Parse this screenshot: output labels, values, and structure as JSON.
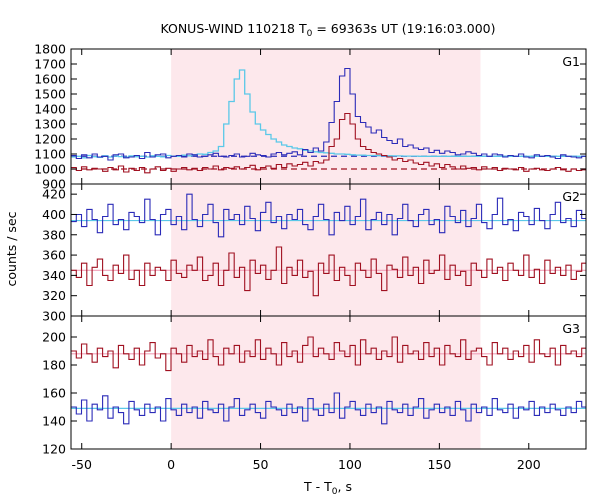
{
  "chart_data": {
    "type": "line",
    "title": {
      "prefix": "KONUS-WIND 110218 T",
      "sub": "0",
      "suffix": " = 69363s UT (19:16:03.000)"
    },
    "xlabel": {
      "prefix": "T - T",
      "sub": "0",
      "suffix": ", s"
    },
    "ylabel": "counts / sec",
    "xlim": [
      -56,
      232
    ],
    "xticks": [
      -50,
      0,
      50,
      100,
      150,
      200
    ],
    "shaded_interval": [
      0,
      173
    ],
    "colors": {
      "shade": "#fde8ec",
      "blue": "#2b2bb8",
      "red": "#a01020",
      "light_blue": "#5bc8e8",
      "pink": "#f0a0b8",
      "frame": "#000000"
    },
    "panels": [
      {
        "label": "G1",
        "ylim": [
          900,
          1800
        ],
        "yticks": [
          900,
          1000,
          1100,
          1200,
          1300,
          1400,
          1500,
          1600,
          1700,
          1800
        ],
        "backgrounds": [
          {
            "color": "blue",
            "style": "dashed",
            "value": 1085
          },
          {
            "color": "red",
            "style": "dashed",
            "value": 1000
          }
        ],
        "series": [
          {
            "color": "light_blue",
            "step": 2.944,
            "values": [
              1080,
              1085,
              1075,
              1090,
              1082,
              1078,
              1088,
              1080,
              1086,
              1083,
              1079,
              1087,
              1082,
              1085,
              1080,
              1088,
              1084,
              1081,
              1090,
              1086,
              1085,
              1092,
              1088,
              1095,
              1100,
              1098,
              1110,
              1120,
              1150,
              1300,
              1450,
              1600,
              1660,
              1500,
              1380,
              1300,
              1260,
              1230,
              1200,
              1180,
              1160,
              1150,
              1140,
              1135,
              1125,
              1120,
              1115,
              1110,
              1108,
              1105,
              1100,
              1100,
              1098,
              1095,
              1093,
              1092,
              1090,
              1090,
              1089,
              1088,
              1088,
              1087,
              1087,
              1086,
              1086,
              1086,
              1085,
              1085,
              1085,
              1085,
              1085,
              1085,
              1085,
              1085,
              1085,
              1085,
              1085,
              1085,
              1085,
              1085,
              1085,
              1085,
              1085,
              1085,
              1085,
              1085,
              1085,
              1085,
              1085,
              1085,
              1085,
              1085,
              1085,
              1085,
              1085,
              1085,
              1085,
              1085
            ]
          },
          {
            "color": "blue",
            "step": 2.944,
            "values": [
              1090,
              1070,
              1095,
              1075,
              1100,
              1080,
              1085,
              1060,
              1095,
              1100,
              1075,
              1080,
              1090,
              1070,
              1110,
              1080,
              1095,
              1100,
              1075,
              1085,
              1090,
              1080,
              1100,
              1095,
              1080,
              1085,
              1095,
              1105,
              1085,
              1080,
              1090,
              1100,
              1080,
              1085,
              1105,
              1095,
              1090,
              1080,
              1100,
              1110,
              1095,
              1105,
              1115,
              1095,
              1130,
              1110,
              1140,
              1120,
              1180,
              1310,
              1450,
              1620,
              1670,
              1500,
              1350,
              1310,
              1280,
              1240,
              1260,
              1210,
              1190,
              1170,
              1200,
              1150,
              1160,
              1140,
              1130,
              1140,
              1110,
              1125,
              1105,
              1120,
              1110,
              1095,
              1100,
              1115,
              1105,
              1090,
              1100,
              1085,
              1100,
              1095,
              1080,
              1090,
              1085,
              1100,
              1080,
              1075,
              1095,
              1085,
              1090,
              1080,
              1070,
              1095,
              1085,
              1080,
              1075,
              1085
            ]
          },
          {
            "color": "red",
            "step": 2.944,
            "values": [
              1010,
              990,
              1015,
              995,
              1005,
              1000,
              985,
              1010,
              995,
              1020,
              980,
              1005,
              990,
              1010,
              975,
              1000,
              1015,
              990,
              1005,
              985,
              1000,
              1010,
              995,
              1005,
              990,
              1010,
              1000,
              1020,
              995,
              1010,
              1005,
              1015,
              1000,
              1010,
              1025,
              995,
              1010,
              1020,
              1005,
              1030,
              1010,
              1035,
              1020,
              1030,
              1045,
              1020,
              1050,
              1040,
              1060,
              1150,
              1200,
              1330,
              1370,
              1300,
              1200,
              1150,
              1130,
              1110,
              1100,
              1090,
              1080,
              1060,
              1070,
              1050,
              1060,
              1040,
              1030,
              1045,
              1020,
              1035,
              1010,
              1030,
              1015,
              1000,
              1020,
              1005,
              1010,
              995,
              1015,
              1000,
              1010,
              990,
              1005,
              1000,
              995,
              1010,
              985,
              1000,
              1005,
              995,
              990,
              1000,
              1010,
              995,
              985,
              1000,
              990,
              995
            ]
          }
        ]
      },
      {
        "label": "G2",
        "ylim": [
          300,
          430
        ],
        "yticks": [
          300,
          320,
          340,
          360,
          380,
          400,
          420
        ],
        "series": [
          {
            "color": "light_blue",
            "constant": 394
          },
          {
            "color": "pink",
            "constant": 345
          },
          {
            "color": "blue",
            "step": 2.944,
            "values": [
              393,
              400,
              388,
              405,
              395,
              382,
              398,
              410,
              390,
              395,
              385,
              402,
              398,
              392,
              415,
              395,
              380,
              400,
              405,
              390,
              398,
              385,
              420,
              395,
              388,
              400,
              410,
              392,
              378,
              405,
              395,
              400,
              390,
              408,
              396,
              384,
              402,
              412,
              392,
              398,
              386,
              400,
              395,
              405,
              390,
              385,
              398,
              410,
              395,
              380,
              402,
              394,
              408,
              390,
              398,
              415,
              385,
              395,
              402,
              390,
              400,
              380,
              396,
              410,
              394,
              388,
              400,
              405,
              390,
              395,
              382,
              408,
              398,
              392,
              404,
              388,
              396,
              410,
              392,
              386,
              400,
              416,
              390,
              395,
              384,
              402,
              398,
              390,
              406,
              394,
              386,
              400,
              412,
              392,
              396,
              388,
              404,
              396
            ]
          },
          {
            "color": "red",
            "step": 2.944,
            "values": [
              345,
              338,
              352,
              330,
              348,
              356,
              340,
              335,
              350,
              342,
              360,
              336,
              345,
              330,
              352,
              340,
              348,
              345,
              335,
              355,
              342,
              338,
              350,
              345,
              358,
              335,
              340,
              352,
              330,
              345,
              362,
              338,
              348,
              325,
              355,
              342,
              350,
              336,
              345,
              368,
              332,
              348,
              340,
              355,
              338,
              344,
              320,
              352,
              342,
              360,
              335,
              348,
              340,
              330,
              352,
              345,
              338,
              356,
              342,
              325,
              350,
              346,
              338,
              358,
              340,
              348,
              332,
              355,
              342,
              345,
              360,
              336,
              350,
              340,
              344,
              330,
              352,
              345,
              338,
              356,
              342,
              348,
              335,
              352,
              345,
              340,
              360,
              338,
              346,
              332,
              355,
              342,
              348,
              340,
              350,
              336,
              344,
              352
            ]
          }
        ]
      },
      {
        "label": "G3",
        "ylim": [
          120,
          215
        ],
        "yticks": [
          120,
          140,
          160,
          180,
          200
        ],
        "series": [
          {
            "color": "pink",
            "constant": 188
          },
          {
            "color": "light_blue",
            "constant": 149
          },
          {
            "color": "red",
            "step": 2.944,
            "values": [
              190,
              185,
              195,
              188,
              182,
              192,
              186,
              190,
              178,
              194,
              188,
              184,
              192,
              180,
              190,
              196,
              185,
              188,
              176,
              192,
              188,
              182,
              194,
              186,
              190,
              184,
              198,
              186,
              180,
              192,
              188,
              194,
              182,
              190,
              186,
              198,
              184,
              192,
              188,
              180,
              196,
              186,
              190,
              182,
              194,
              200,
              186,
              192,
              188,
              184,
              196,
              190,
              186,
              194,
              180,
              198,
              188,
              192,
              184,
              190,
              186,
              200,
              182,
              194,
              188,
              190,
              184,
              196,
              186,
              192,
              180,
              194,
              188,
              186,
              198,
              184,
              190,
              192,
              186,
              180,
              196,
              188,
              192,
              184,
              190,
              186,
              194,
              182,
              198,
              188,
              186,
              192,
              180,
              194,
              188,
              190,
              186,
              192
            ]
          },
          {
            "color": "blue",
            "step": 2.944,
            "values": [
              150,
              145,
              155,
              140,
              152,
              148,
              158,
              142,
              150,
              146,
              138,
              154,
              148,
              144,
              152,
              146,
              150,
              140,
              156,
              148,
              144,
              152,
              146,
              150,
              142,
              154,
              148,
              146,
              152,
              140,
              150,
              156,
              144,
              148,
              152,
              146,
              142,
              154,
              150,
              148,
              144,
              152,
              146,
              150,
              140,
              156,
              148,
              144,
              152,
              146,
              160,
              142,
              150,
              154,
              148,
              144,
              152,
              146,
              150,
              138,
              154,
              148,
              146,
              152,
              144,
              150,
              156,
              142,
              148,
              152,
              146,
              150,
              144,
              154,
              148,
              140,
              152,
              146,
              150,
              144,
              156,
              148,
              146,
              152,
              142,
              150,
              148,
              154,
              144,
              150,
              146,
              152,
              148,
              144,
              150,
              146,
              154,
              150
            ]
          }
        ]
      }
    ]
  }
}
